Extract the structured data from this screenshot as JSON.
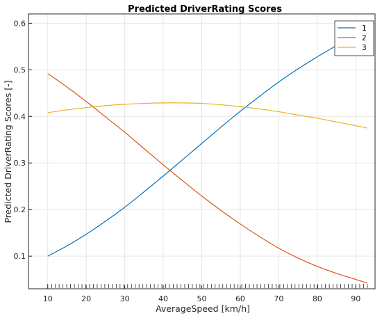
{
  "chart_data": {
    "type": "line",
    "title": "Predicted DriverRating Scores",
    "xlabel": "AverageSpeed [km/h]",
    "ylabel": "Predicted DriverRating Scores [-]",
    "xlim": [
      5,
      95
    ],
    "ylim": [
      0.03,
      0.62
    ],
    "xticks": [
      10,
      20,
      30,
      40,
      50,
      60,
      70,
      80,
      90
    ],
    "yticks": [
      0.1,
      0.2,
      0.3,
      0.4,
      0.5,
      0.6
    ],
    "grid": true,
    "legend_position": "top-right",
    "rug": true,
    "x": [
      10,
      15,
      20,
      25,
      30,
      35,
      40,
      45,
      50,
      55,
      60,
      65,
      70,
      75,
      80,
      85,
      90,
      93
    ],
    "series": [
      {
        "name": "1",
        "color": "#0072BD",
        "values": [
          0.1,
          0.122,
          0.147,
          0.175,
          0.205,
          0.238,
          0.272,
          0.307,
          0.342,
          0.377,
          0.411,
          0.443,
          0.474,
          0.502,
          0.528,
          0.552,
          0.575,
          0.585
        ]
      },
      {
        "name": "2",
        "color": "#D95319",
        "values": [
          0.492,
          0.463,
          0.432,
          0.399,
          0.366,
          0.331,
          0.296,
          0.262,
          0.229,
          0.198,
          0.169,
          0.142,
          0.117,
          0.096,
          0.078,
          0.063,
          0.05,
          0.042
        ]
      },
      {
        "name": "3",
        "color": "#EDB120",
        "values": [
          0.408,
          0.414,
          0.419,
          0.423,
          0.426,
          0.428,
          0.429,
          0.429,
          0.428,
          0.425,
          0.421,
          0.416,
          0.41,
          0.403,
          0.396,
          0.388,
          0.38,
          0.375
        ]
      }
    ]
  }
}
